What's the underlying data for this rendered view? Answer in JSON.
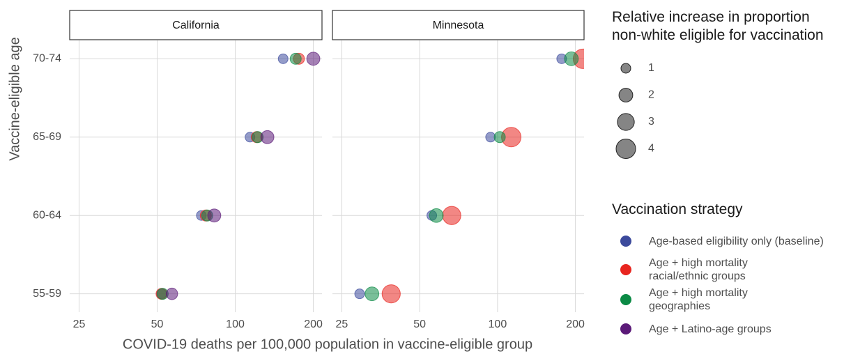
{
  "chart_data": {
    "type": "scatter",
    "x_label": "COVID-19 deaths per 100,000 population in vaccine-eligible group",
    "y_label": "Vaccine-eligible age",
    "categories": [
      "70-74",
      "65-69",
      "60-64",
      "55-59"
    ],
    "xlim": [
      23,
      216
    ],
    "xticks": [
      25,
      50,
      100,
      200
    ],
    "log_x": true,
    "grid": true,
    "size_legend": {
      "title": "Relative increase in proportion non-white eligible for vaccination",
      "values": [
        1,
        2,
        3,
        4
      ]
    },
    "legend_title": "Vaccination strategy",
    "series": [
      {
        "name": "Age-based eligibility only (baseline)",
        "color": "#3c4a9c"
      },
      {
        "name": "Age + high mortality racial/ethnic groups",
        "color": "#e8251f"
      },
      {
        "name": "Age + high mortality geographies",
        "color": "#0b8a45"
      },
      {
        "name": "Age + Latino-age groups",
        "color": "#5b1a78"
      }
    ],
    "panels": [
      {
        "title": "California",
        "points": [
          {
            "x": [
              153,
              114,
              74,
              52
            ],
            "size": [
              1,
              1,
              1,
              1
            ]
          },
          {
            "x": [
              176,
              121,
              77,
              52
            ],
            "size": [
              1.3,
              1.3,
              1.3,
              1.3
            ]
          },
          {
            "x": [
              171,
              122,
              78,
              52.5
            ],
            "size": [
              1.3,
              1.3,
              1.3,
              1.3
            ]
          },
          {
            "x": [
              200,
              133,
              83,
              57
            ],
            "size": [
              1.8,
              1.8,
              1.8,
              1.4
            ]
          }
        ]
      },
      {
        "title": "Minnesota",
        "points": [
          {
            "x": [
              177,
              94,
              55.7,
              29.3
            ],
            "size": [
              1,
              1,
              1,
              1
            ]
          },
          {
            "x": [
              214,
              113,
              66.5,
              38.8
            ],
            "size": [
              4,
              4,
              3.5,
              3.5
            ]
          },
          {
            "x": [
              193,
              102,
              58,
              32.7
            ],
            "size": [
              2,
              1.3,
              2,
              2
            ]
          },
          {
            "x": [
              null,
              null,
              null,
              null
            ],
            "size": [
              null,
              null,
              null,
              null
            ]
          }
        ]
      }
    ]
  }
}
